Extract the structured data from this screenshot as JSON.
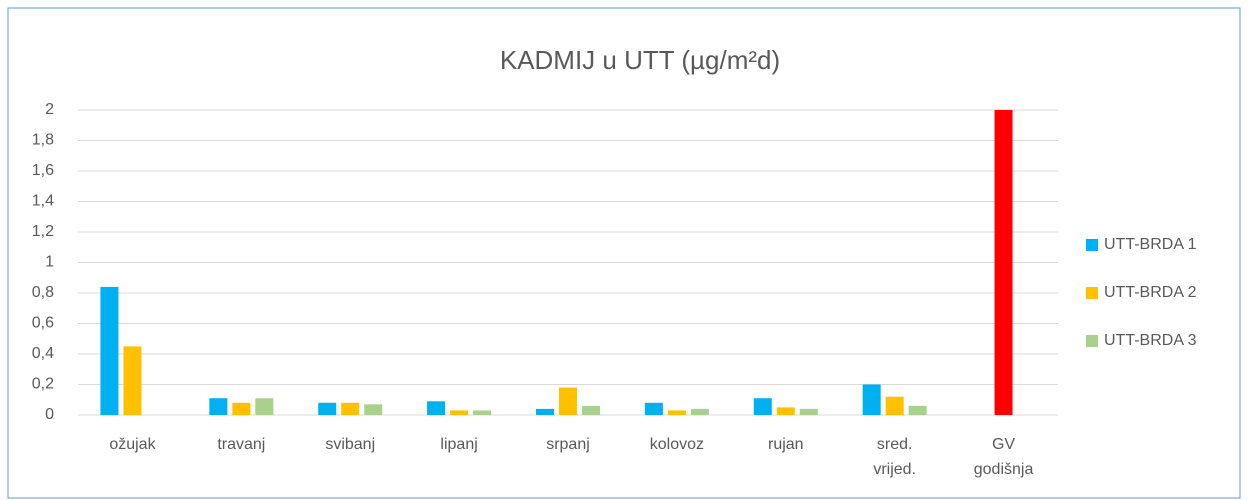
{
  "chart_data": {
    "type": "bar",
    "title": "KADMIJ u UTT (µg/m²d)",
    "categories": [
      "ožujak",
      "travanj",
      "svibanj",
      "lipanj",
      "srpanj",
      "kolovoz",
      "rujan",
      "sred.\nvrijed.",
      "GV\ngodišnja"
    ],
    "series": [
      {
        "name": "UTT-BRDA 1",
        "color": "#00b0f0",
        "values": [
          0.84,
          0.11,
          0.08,
          0.09,
          0.04,
          0.08,
          0.11,
          0.2,
          null
        ]
      },
      {
        "name": "UTT-BRDA 2",
        "color": "#ffc000",
        "values": [
          0.45,
          0.08,
          0.08,
          0.03,
          0.18,
          0.03,
          0.05,
          0.12,
          2
        ],
        "point_colors": [
          null,
          null,
          null,
          null,
          null,
          null,
          null,
          null,
          "#ff0000"
        ]
      },
      {
        "name": "UTT-BRDA 3",
        "color": "#a9d18e",
        "values": [
          null,
          0.11,
          0.07,
          0.03,
          0.06,
          0.04,
          0.04,
          0.06,
          null
        ]
      }
    ],
    "ylim": [
      0,
      2
    ],
    "yticks": [
      0,
      {
        "value": 0.2,
        "label": "0,2"
      },
      {
        "value": 0.4,
        "label": "0,4"
      },
      {
        "value": 0.6,
        "label": "0,6"
      },
      {
        "value": 0.8,
        "label": "0,8"
      },
      1,
      {
        "value": 1.2,
        "label": "1,2"
      },
      {
        "value": 1.4,
        "label": "1,4"
      },
      {
        "value": 1.6,
        "label": "1,6"
      },
      {
        "value": 1.8,
        "label": "1,8"
      },
      2
    ],
    "grid": true,
    "legend": "right"
  }
}
